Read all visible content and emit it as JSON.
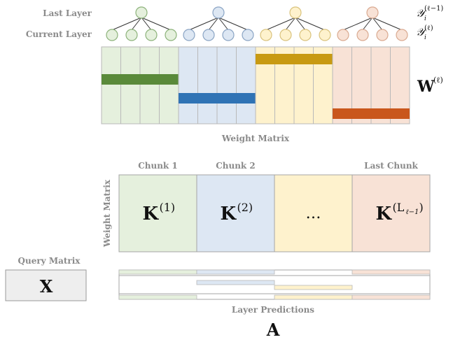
{
  "labels": {
    "last_layer": "Last Layer",
    "current_layer": "Current Layer",
    "y_last": "𝒴",
    "y_last_sub": "i",
    "y_last_sup": "(ℓ−1)",
    "y_curr": "𝒴",
    "y_curr_sub": "i",
    "y_curr_sup": "(ℓ)",
    "w_main": "W",
    "w_sup": "(ℓ)",
    "weight_matrix_caption": "Weight Matrix",
    "weight_matrix_vertical": "Weight Matrix",
    "query_matrix": "Query Matrix",
    "layer_predictions": "Layer Predictions",
    "a_symbol": "A",
    "x_symbol": "X"
  },
  "chunks": [
    {
      "header": "Chunk 1",
      "main": "K",
      "sup": "(1)",
      "fill": "#e5f0dd",
      "stroke": "#8cb27a",
      "bar": "#5a8a3a"
    },
    {
      "header": "Chunk 2",
      "main": "K",
      "sup": "(2)",
      "fill": "#dde7f3",
      "stroke": "#8aa4c4",
      "bar": "#2f73b5"
    },
    {
      "header": "",
      "main": "…",
      "sup": "",
      "fill": "#fef2cd",
      "stroke": "#d9c27c",
      "bar": "#c89a12"
    },
    {
      "header": "Last Chunk",
      "main": "K",
      "sup": "(L",
      "sup_sub": "ℓ−1",
      "sup_end": ")",
      "fill": "#f8e2d6",
      "stroke": "#d9a990",
      "bar": "#c9571c"
    }
  ],
  "colors": {
    "grid_line": "#b9b9b9",
    "gray_label": "#8a8a8a",
    "query_fill": "#eeeeee"
  }
}
